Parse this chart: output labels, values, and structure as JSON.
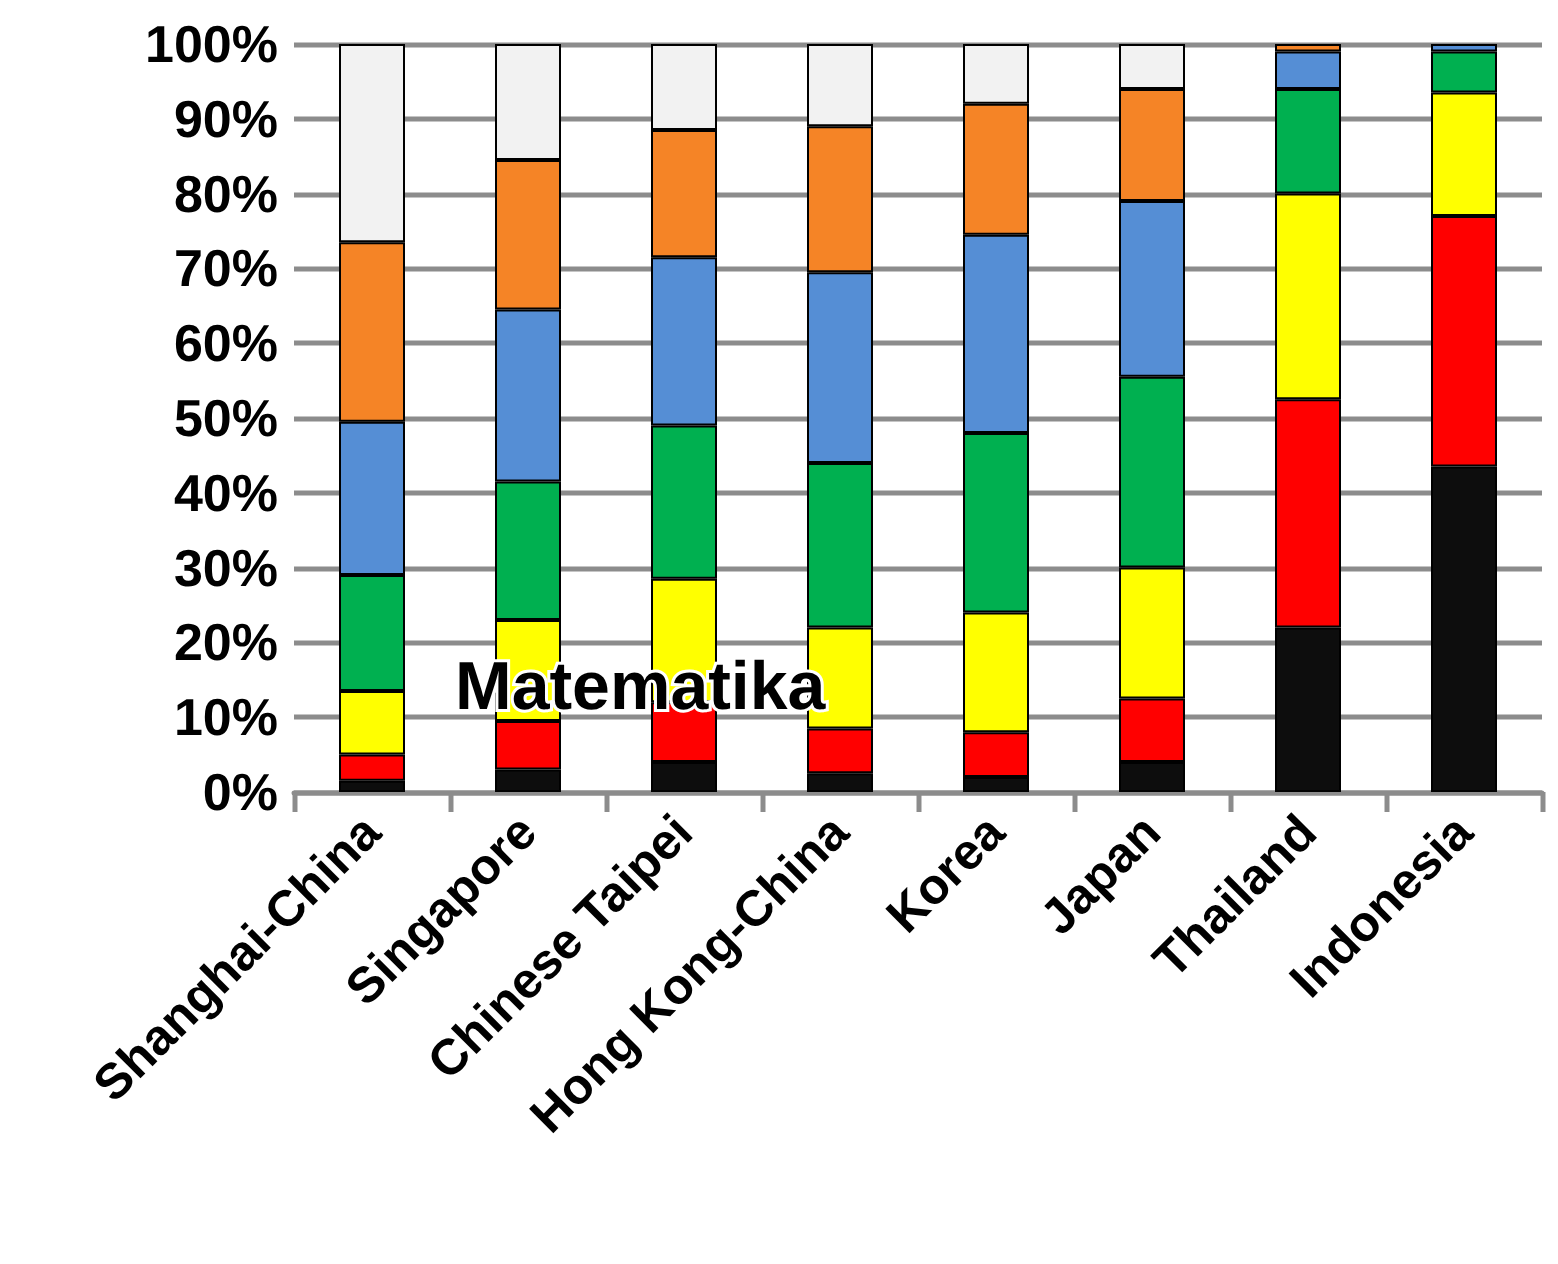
{
  "chart_data": {
    "type": "bar",
    "stacked": true,
    "categories": [
      "Shanghai-China",
      "Singapore",
      "Chinese Taipei",
      "Hong Kong-China",
      "Korea",
      "Japan",
      "Thailand",
      "Indonesia"
    ],
    "series": [
      {
        "color": "#0d0d0d",
        "values": [
          1.5,
          3,
          4,
          2.5,
          2,
          4,
          22,
          43.5
        ]
      },
      {
        "color": "#ff0000",
        "values": [
          3.5,
          6.5,
          8,
          6,
          6,
          8.5,
          30.5,
          33.5
        ]
      },
      {
        "color": "#ffff00",
        "values": [
          8.5,
          13.5,
          16.5,
          13.5,
          16,
          17.5,
          27.5,
          16.5
        ]
      },
      {
        "color": "#00b050",
        "values": [
          15.5,
          18.5,
          20.5,
          22,
          24,
          25.5,
          14,
          5.5
        ]
      },
      {
        "color": "#558ed5",
        "values": [
          20.5,
          23,
          22.5,
          25.5,
          26.5,
          23.5,
          5,
          1
        ]
      },
      {
        "color": "#f58426",
        "values": [
          24,
          20,
          17,
          19.5,
          17.5,
          15,
          1,
          null
        ]
      },
      {
        "color": "#f2f2f2",
        "values": [
          26.5,
          15.5,
          11.5,
          11,
          8,
          6,
          null,
          null
        ]
      }
    ],
    "ylim": [
      0,
      100
    ],
    "yticks": [
      {
        "value": 0,
        "label": "0%"
      },
      {
        "value": 10,
        "label": "10%"
      },
      {
        "value": 20,
        "label": "20%"
      },
      {
        "value": 30,
        "label": "30%"
      },
      {
        "value": 40,
        "label": "40%"
      },
      {
        "value": 50,
        "label": "50%"
      },
      {
        "value": 60,
        "label": "60%"
      },
      {
        "value": 70,
        "label": "70%"
      },
      {
        "value": 80,
        "label": "80%"
      },
      {
        "value": 90,
        "label": "90%"
      },
      {
        "value": 100,
        "label": "100%"
      }
    ],
    "grid": "y",
    "annotations": [
      "Matematika"
    ]
  }
}
